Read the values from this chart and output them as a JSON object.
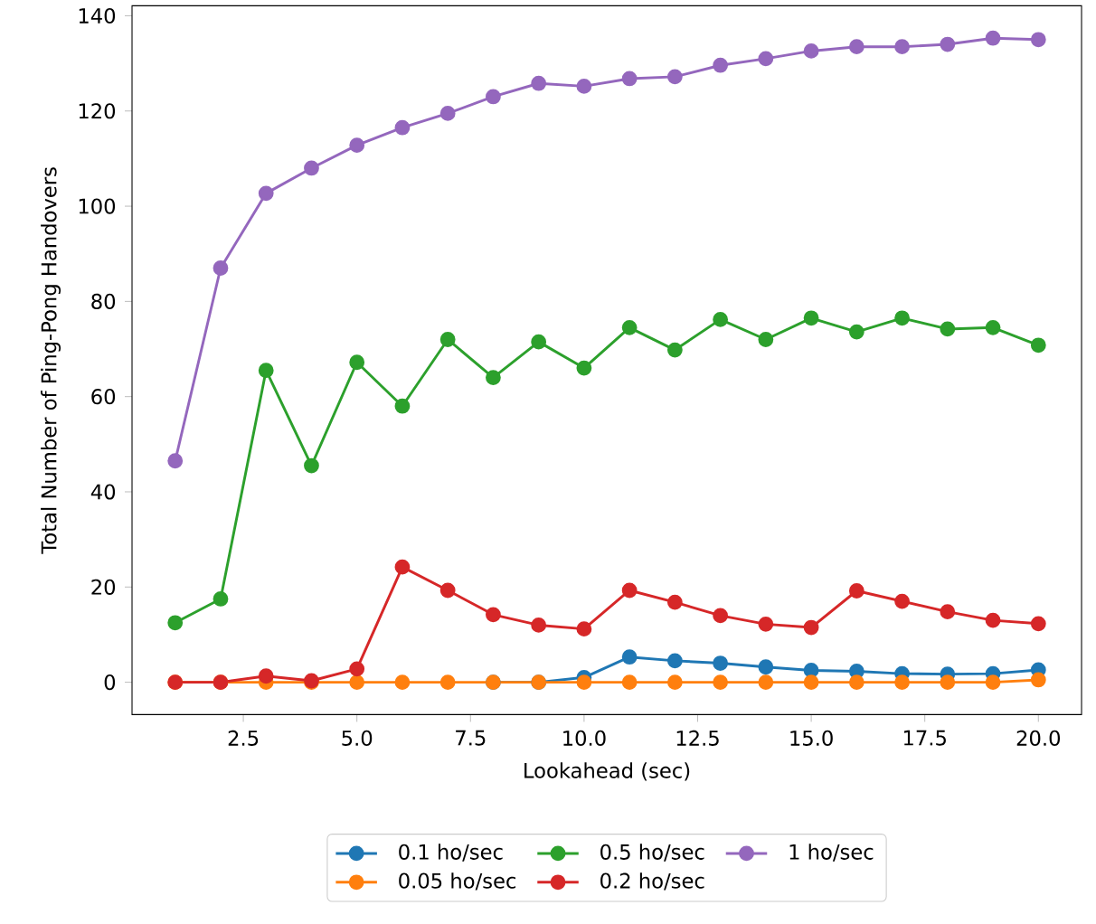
{
  "chart_data": {
    "type": "line",
    "xlabel": "Lookahead (sec)",
    "ylabel": "Total Number of Ping-Pong Handovers",
    "x": [
      1,
      2,
      3,
      4,
      5,
      6,
      7,
      8,
      9,
      10,
      11,
      12,
      13,
      14,
      15,
      16,
      17,
      18,
      19,
      20
    ],
    "series": [
      {
        "name": "0.1 ho/sec",
        "color": "#1f77b4",
        "values": [
          null,
          null,
          null,
          null,
          null,
          null,
          null,
          0,
          0,
          1,
          5.3,
          4.5,
          4,
          3.2,
          2.5,
          2.3,
          1.8,
          1.7,
          1.8,
          2.6
        ]
      },
      {
        "name": "0.05 ho/sec",
        "color": "#ff7f0e",
        "values": [
          0,
          0,
          0,
          0,
          0,
          0,
          0,
          0,
          0,
          0,
          0,
          0,
          0,
          0,
          0,
          0,
          0,
          0,
          0,
          0.5
        ]
      },
      {
        "name": "0.5 ho/sec",
        "color": "#2ca02c",
        "values": [
          12.5,
          17.5,
          65.5,
          45.5,
          67.2,
          58,
          72,
          64,
          71.5,
          66,
          74.5,
          69.8,
          76.2,
          72,
          76.5,
          73.6,
          76.5,
          74.2,
          74.5,
          70.8
        ]
      },
      {
        "name": "0.2 ho/sec",
        "color": "#d62728",
        "values": [
          0,
          0,
          1.3,
          0.3,
          2.8,
          24.2,
          19.3,
          14.2,
          12,
          11.2,
          19.3,
          16.8,
          14,
          12.2,
          11.5,
          19.2,
          17,
          14.8,
          13,
          12.3
        ]
      },
      {
        "name": "1 ho/sec",
        "color": "#9467bd",
        "values": [
          46.5,
          87,
          102.7,
          108,
          112.8,
          116.5,
          119.5,
          123,
          125.8,
          125.2,
          126.8,
          127.2,
          129.6,
          131,
          132.6,
          133.5,
          133.5,
          134,
          135.3,
          135
        ]
      }
    ],
    "xlim": [
      0.05,
      20.95
    ],
    "ylim": [
      -6.8,
      142.1
    ],
    "xticks": [
      {
        "value": 2.5,
        "label": "2.5"
      },
      {
        "value": 5,
        "label": "5.0"
      },
      {
        "value": 7.5,
        "label": "7.5"
      },
      {
        "value": 10,
        "label": "10.0"
      },
      {
        "value": 12.5,
        "label": "12.5"
      },
      {
        "value": 15,
        "label": "15.0"
      },
      {
        "value": 17.5,
        "label": "17.5"
      },
      {
        "value": 20,
        "label": "20.0"
      }
    ],
    "yticks": [
      0,
      20,
      40,
      60,
      80,
      100,
      120,
      140
    ],
    "legend": "bottom",
    "marker": "circle",
    "line_style": "solid",
    "grid": false
  }
}
